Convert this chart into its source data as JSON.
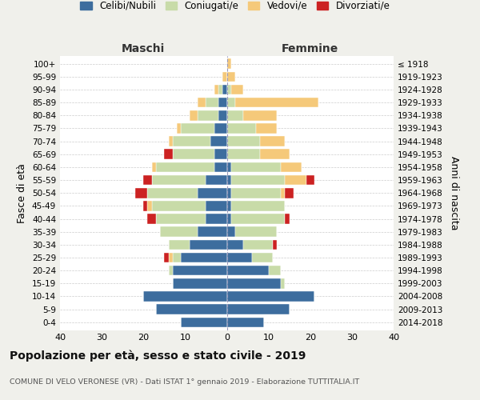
{
  "age_groups": [
    "0-4",
    "5-9",
    "10-14",
    "15-19",
    "20-24",
    "25-29",
    "30-34",
    "35-39",
    "40-44",
    "45-49",
    "50-54",
    "55-59",
    "60-64",
    "65-69",
    "70-74",
    "75-79",
    "80-84",
    "85-89",
    "90-94",
    "95-99",
    "100+"
  ],
  "birth_years": [
    "2014-2018",
    "2009-2013",
    "2004-2008",
    "1999-2003",
    "1994-1998",
    "1989-1993",
    "1984-1988",
    "1979-1983",
    "1974-1978",
    "1969-1973",
    "1964-1968",
    "1959-1963",
    "1954-1958",
    "1949-1953",
    "1944-1948",
    "1939-1943",
    "1934-1938",
    "1929-1933",
    "1924-1928",
    "1919-1923",
    "≤ 1918"
  ],
  "colors": {
    "celibe": "#3d6d9e",
    "coniugato": "#c8dba8",
    "vedovo": "#f5c97a",
    "divorziato": "#cc2222"
  },
  "maschi": {
    "celibe": [
      11,
      17,
      20,
      13,
      13,
      11,
      9,
      7,
      5,
      5,
      7,
      5,
      3,
      3,
      4,
      3,
      2,
      2,
      1,
      0,
      0
    ],
    "coniugato": [
      0,
      0,
      0,
      0,
      1,
      2,
      5,
      9,
      12,
      13,
      12,
      13,
      14,
      10,
      9,
      8,
      5,
      3,
      1,
      0,
      0
    ],
    "vedovo": [
      0,
      0,
      0,
      0,
      0,
      1,
      0,
      0,
      0,
      1,
      0,
      0,
      1,
      0,
      1,
      1,
      2,
      2,
      1,
      1,
      0
    ],
    "divorziato": [
      0,
      0,
      0,
      0,
      0,
      1,
      0,
      0,
      2,
      1,
      3,
      2,
      0,
      2,
      0,
      0,
      0,
      0,
      0,
      0,
      0
    ]
  },
  "femmine": {
    "nubile": [
      9,
      15,
      21,
      13,
      10,
      6,
      4,
      2,
      1,
      1,
      1,
      1,
      1,
      0,
      0,
      0,
      0,
      0,
      0,
      0,
      0
    ],
    "coniugata": [
      0,
      0,
      0,
      1,
      3,
      5,
      7,
      10,
      13,
      13,
      12,
      13,
      12,
      8,
      8,
      7,
      4,
      2,
      1,
      0,
      0
    ],
    "vedova": [
      0,
      0,
      0,
      0,
      0,
      0,
      0,
      0,
      0,
      0,
      1,
      5,
      5,
      7,
      6,
      5,
      8,
      20,
      3,
      2,
      1
    ],
    "divorziata": [
      0,
      0,
      0,
      0,
      0,
      0,
      1,
      0,
      1,
      0,
      2,
      2,
      0,
      0,
      0,
      0,
      0,
      0,
      0,
      0,
      0
    ]
  },
  "xlim": 40,
  "title": "Popolazione per età, sesso e stato civile - 2019",
  "subtitle": "COMUNE DI VELO VERONESE (VR) - Dati ISTAT 1° gennaio 2019 - Elaborazione TUTTITALIA.IT",
  "ylabel_left": "Fasce di età",
  "ylabel_right": "Anni di nascita",
  "header_maschi": "Maschi",
  "header_femmine": "Femmine",
  "legend_labels": [
    "Celibi/Nubili",
    "Coniugati/e",
    "Vedovi/e",
    "Divorziati/e"
  ],
  "bg_color": "#f0f0eb",
  "plot_bg": "#ffffff"
}
